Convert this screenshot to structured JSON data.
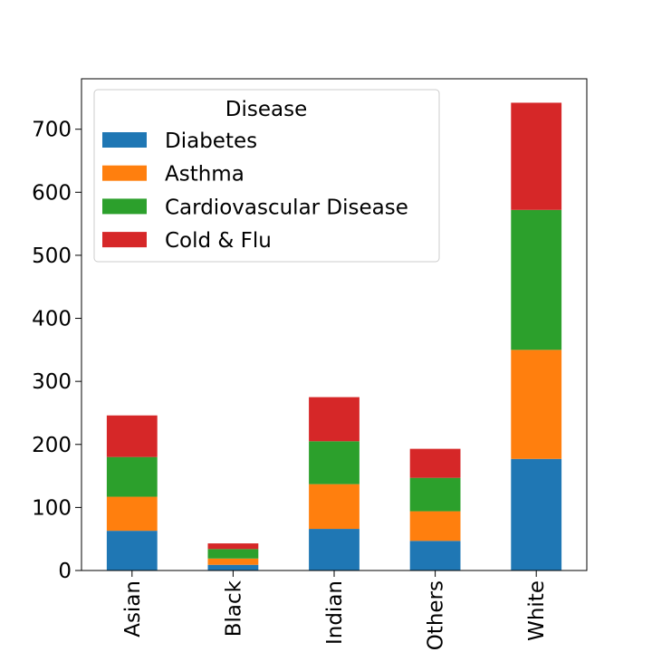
{
  "chart_data": {
    "type": "bar",
    "stacked": true,
    "categories": [
      "Asian",
      "Black",
      "Indian",
      "Others",
      "White"
    ],
    "series": [
      {
        "name": "Diabetes",
        "color": "#1f77b4",
        "values": [
          63,
          9,
          66,
          47,
          177
        ]
      },
      {
        "name": "Asthma",
        "color": "#ff7f0e",
        "values": [
          54,
          10,
          71,
          47,
          173
        ]
      },
      {
        "name": "Cardiovascular Disease",
        "color": "#2ca02c",
        "values": [
          63,
          15,
          68,
          53,
          222
        ]
      },
      {
        "name": "Cold & Flu",
        "color": "#d62728",
        "values": [
          66,
          9,
          70,
          46,
          170
        ]
      }
    ],
    "legend_title": "Disease",
    "legend_position": "top-left",
    "yticks": [
      0,
      100,
      200,
      300,
      400,
      500,
      600,
      700
    ],
    "ylim": [
      0,
      780
    ],
    "grid": false
  }
}
